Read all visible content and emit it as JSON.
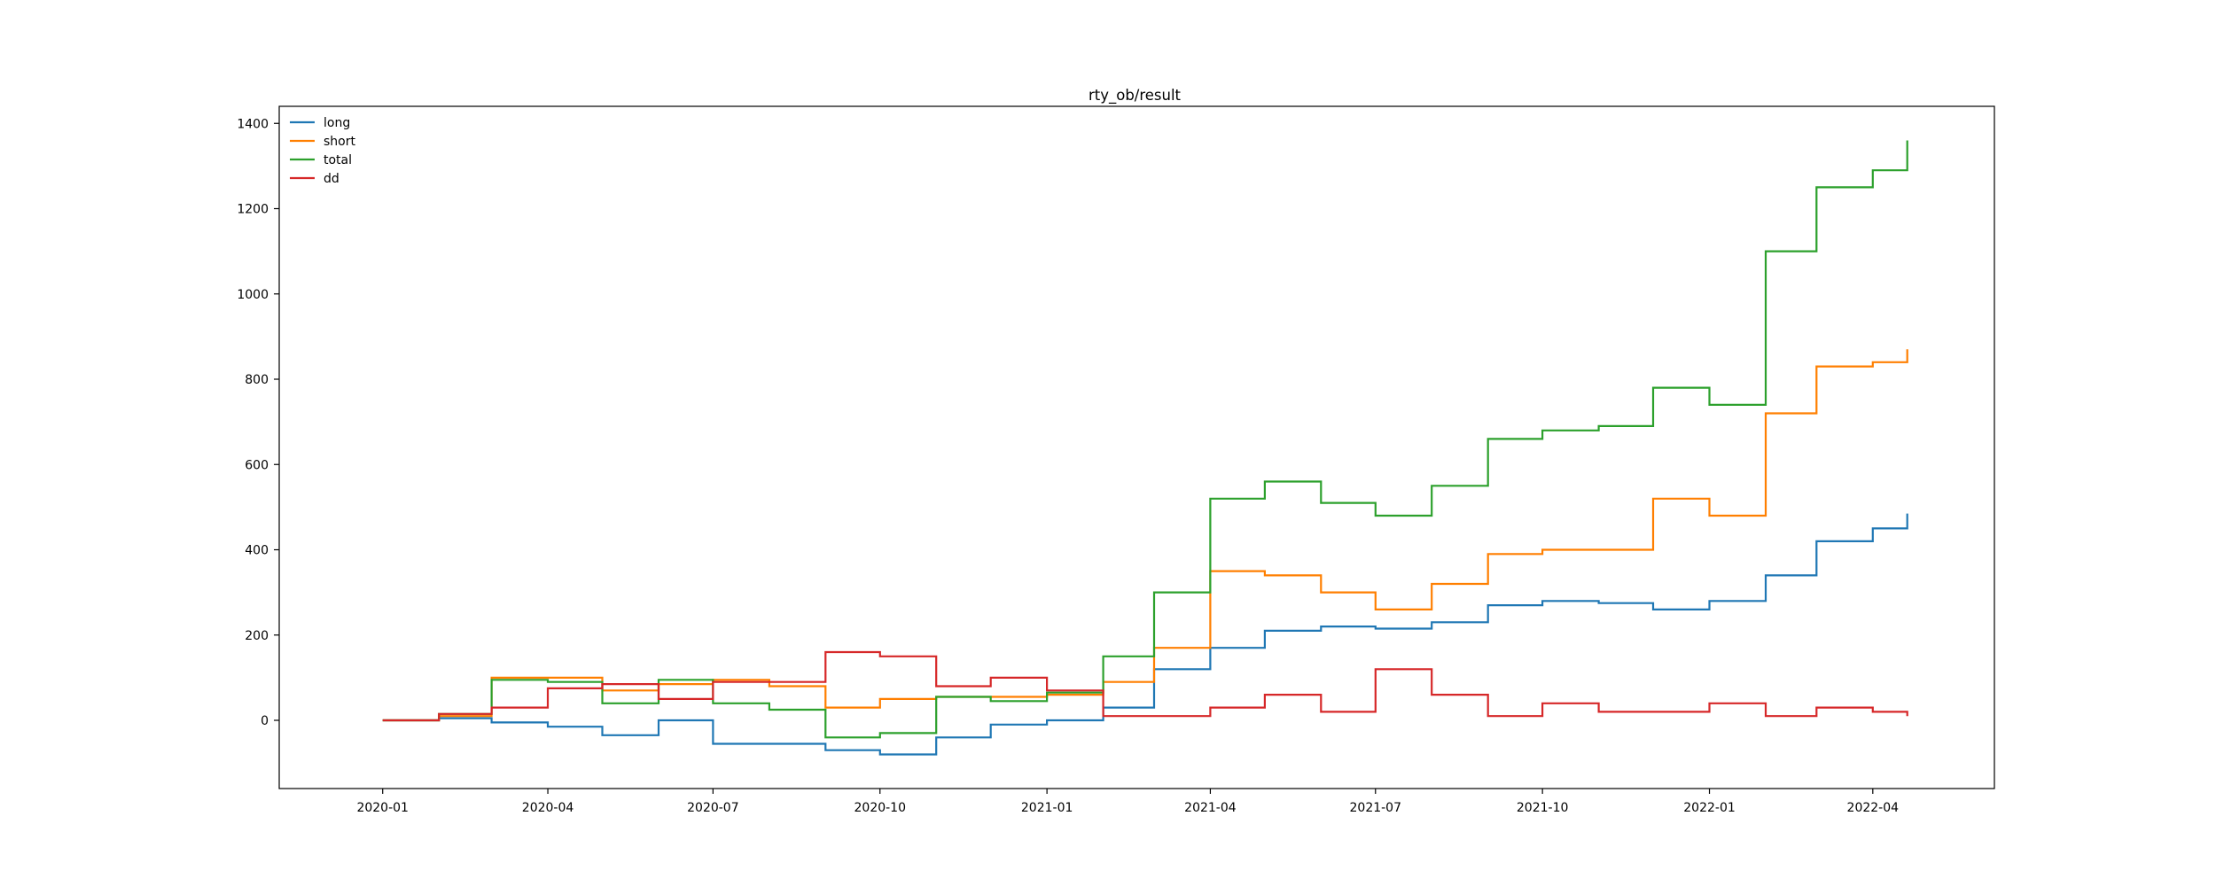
{
  "chart_data": {
    "type": "line",
    "title": "rty_ob/result",
    "xlabel": "",
    "ylabel": "",
    "x_ticks": [
      "2020-01",
      "2020-04",
      "2020-07",
      "2020-10",
      "2021-01",
      "2021-04",
      "2021-07",
      "2021-10",
      "2022-01",
      "2022-04"
    ],
    "xlim": [
      "2019-11-05",
      "2022-06-07"
    ],
    "y_ticks": [
      0,
      200,
      400,
      600,
      800,
      1000,
      1200,
      1400
    ],
    "ylim": [
      -160,
      1440
    ],
    "grid": false,
    "legend_position": "top-left",
    "x": [
      "2020-01-01",
      "2020-02-01",
      "2020-03-01",
      "2020-04-01",
      "2020-05-01",
      "2020-06-01",
      "2020-07-01",
      "2020-08-01",
      "2020-09-01",
      "2020-10-01",
      "2020-11-01",
      "2020-12-01",
      "2021-01-01",
      "2021-02-01",
      "2021-03-01",
      "2021-04-01",
      "2021-05-01",
      "2021-06-01",
      "2021-07-01",
      "2021-08-01",
      "2021-09-01",
      "2021-10-01",
      "2021-11-01",
      "2021-12-01",
      "2022-01-01",
      "2022-02-01",
      "2022-03-01",
      "2022-04-01",
      "2022-04-20"
    ],
    "series": [
      {
        "name": "long",
        "color": "#1f77b4",
        "values": [
          0,
          5,
          -5,
          -15,
          -35,
          0,
          -55,
          -55,
          -70,
          -80,
          -40,
          -10,
          0,
          30,
          120,
          170,
          210,
          220,
          215,
          230,
          270,
          280,
          275,
          260,
          280,
          340,
          420,
          450,
          485
        ]
      },
      {
        "name": "short",
        "color": "#ff7f00",
        "values": [
          0,
          10,
          100,
          100,
          70,
          85,
          95,
          80,
          30,
          50,
          55,
          55,
          60,
          90,
          170,
          350,
          340,
          300,
          260,
          320,
          390,
          400,
          400,
          520,
          480,
          720,
          830,
          840,
          870
        ]
      },
      {
        "name": "total",
        "color": "#2ca02c",
        "values": [
          0,
          15,
          95,
          90,
          40,
          95,
          40,
          25,
          -40,
          -30,
          55,
          45,
          65,
          150,
          300,
          520,
          560,
          510,
          480,
          550,
          660,
          680,
          690,
          780,
          740,
          1100,
          1250,
          1290,
          1360
        ]
      },
      {
        "name": "dd",
        "color": "#d62728",
        "values": [
          0,
          15,
          30,
          75,
          85,
          50,
          90,
          90,
          160,
          150,
          80,
          100,
          70,
          10,
          10,
          30,
          60,
          20,
          120,
          60,
          10,
          40,
          20,
          20,
          40,
          10,
          30,
          20,
          10
        ]
      }
    ]
  }
}
